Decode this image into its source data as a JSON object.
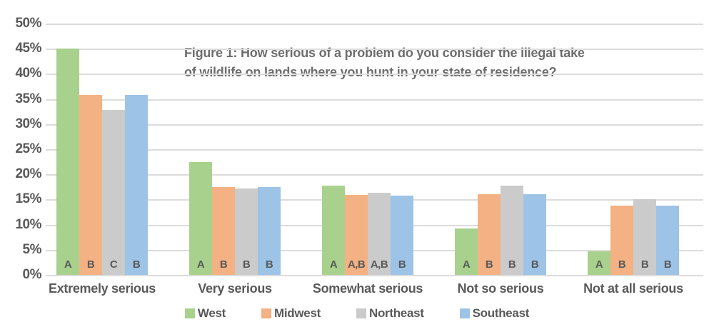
{
  "chart_data": {
    "type": "bar",
    "title": "Figure 1: How serious of a problem do you consider the illegal take of wildlife on lands where you hunt in your state of residence?",
    "title_lines": [
      "Figure 1: How serious of a problem do you consider the illegal take",
      "of wildlife on lands where you hunt in your state of residence?"
    ],
    "categories": [
      "Extremely serious",
      "Very serious",
      "Somewhat serious",
      "Not so serious",
      "Not at all serious"
    ],
    "series": [
      {
        "name": "West",
        "color": "#A9D18E",
        "values": [
          45.0,
          22.5,
          17.8,
          9.3,
          4.7
        ],
        "letters": [
          "A",
          "A",
          "A",
          "A",
          "A"
        ]
      },
      {
        "name": "Midwest",
        "color": "#F4B183",
        "values": [
          35.8,
          17.5,
          15.9,
          16.0,
          13.8
        ],
        "letters": [
          "B",
          "B",
          "A,B",
          "B",
          "B"
        ]
      },
      {
        "name": "Northeast",
        "color": "#CBCBCB",
        "values": [
          32.8,
          17.2,
          16.3,
          17.8,
          15.0
        ],
        "letters": [
          "C",
          "B",
          "A,B",
          "B",
          "B"
        ]
      },
      {
        "name": "Southeast",
        "color": "#9DC3E6",
        "values": [
          35.8,
          17.5,
          15.7,
          16.0,
          13.8
        ],
        "letters": [
          "B",
          "B",
          "B",
          "B",
          "B"
        ]
      }
    ],
    "ylabel": "",
    "xlabel": "",
    "ylim": [
      0,
      50
    ],
    "ytick_step": 5,
    "ytick_labels": [
      "0%",
      "5%",
      "10%",
      "15%",
      "20%",
      "25%",
      "30%",
      "35%",
      "40%",
      "45%",
      "50%"
    ],
    "grid": true,
    "legend_position": "bottom",
    "colors": {
      "grid": "#dcdcdc",
      "axis_text": "#595959",
      "title_text": "#6d6d6d"
    }
  }
}
